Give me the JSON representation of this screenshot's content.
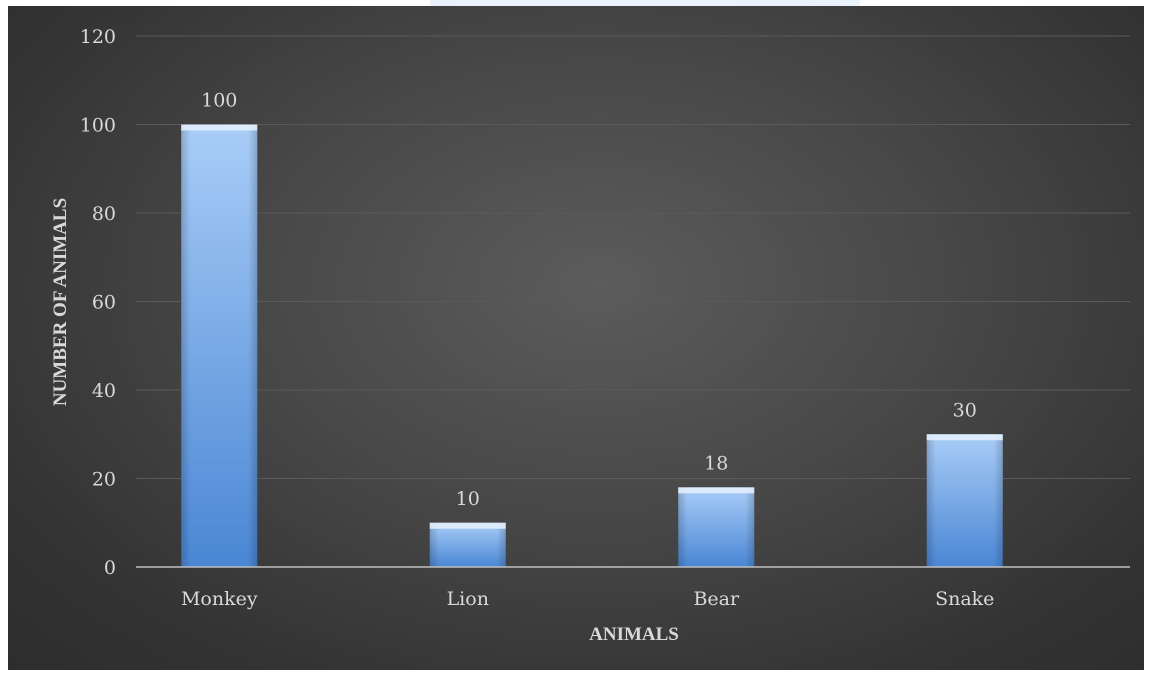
{
  "chart_data": {
    "type": "bar",
    "categories": [
      "Monkey",
      "Lion",
      "Bear",
      "Snake"
    ],
    "values": [
      100,
      10,
      18,
      30
    ],
    "data_labels": [
      "100",
      "10",
      "18",
      "30"
    ],
    "title": "",
    "xlabel": "ANIMALS",
    "ylabel": "NUMBER OF ANIMALS",
    "ylim": [
      0,
      120
    ],
    "yticks": [
      0,
      20,
      40,
      60,
      80,
      100,
      120
    ],
    "grid": true,
    "legend": "none",
    "colors": {
      "bar_light": "#a9cdf7",
      "bar_dark": "#4a86d4",
      "background": "#3e3e3e",
      "gridline": "#5a5a5a",
      "text": "#d9d9d9"
    }
  }
}
